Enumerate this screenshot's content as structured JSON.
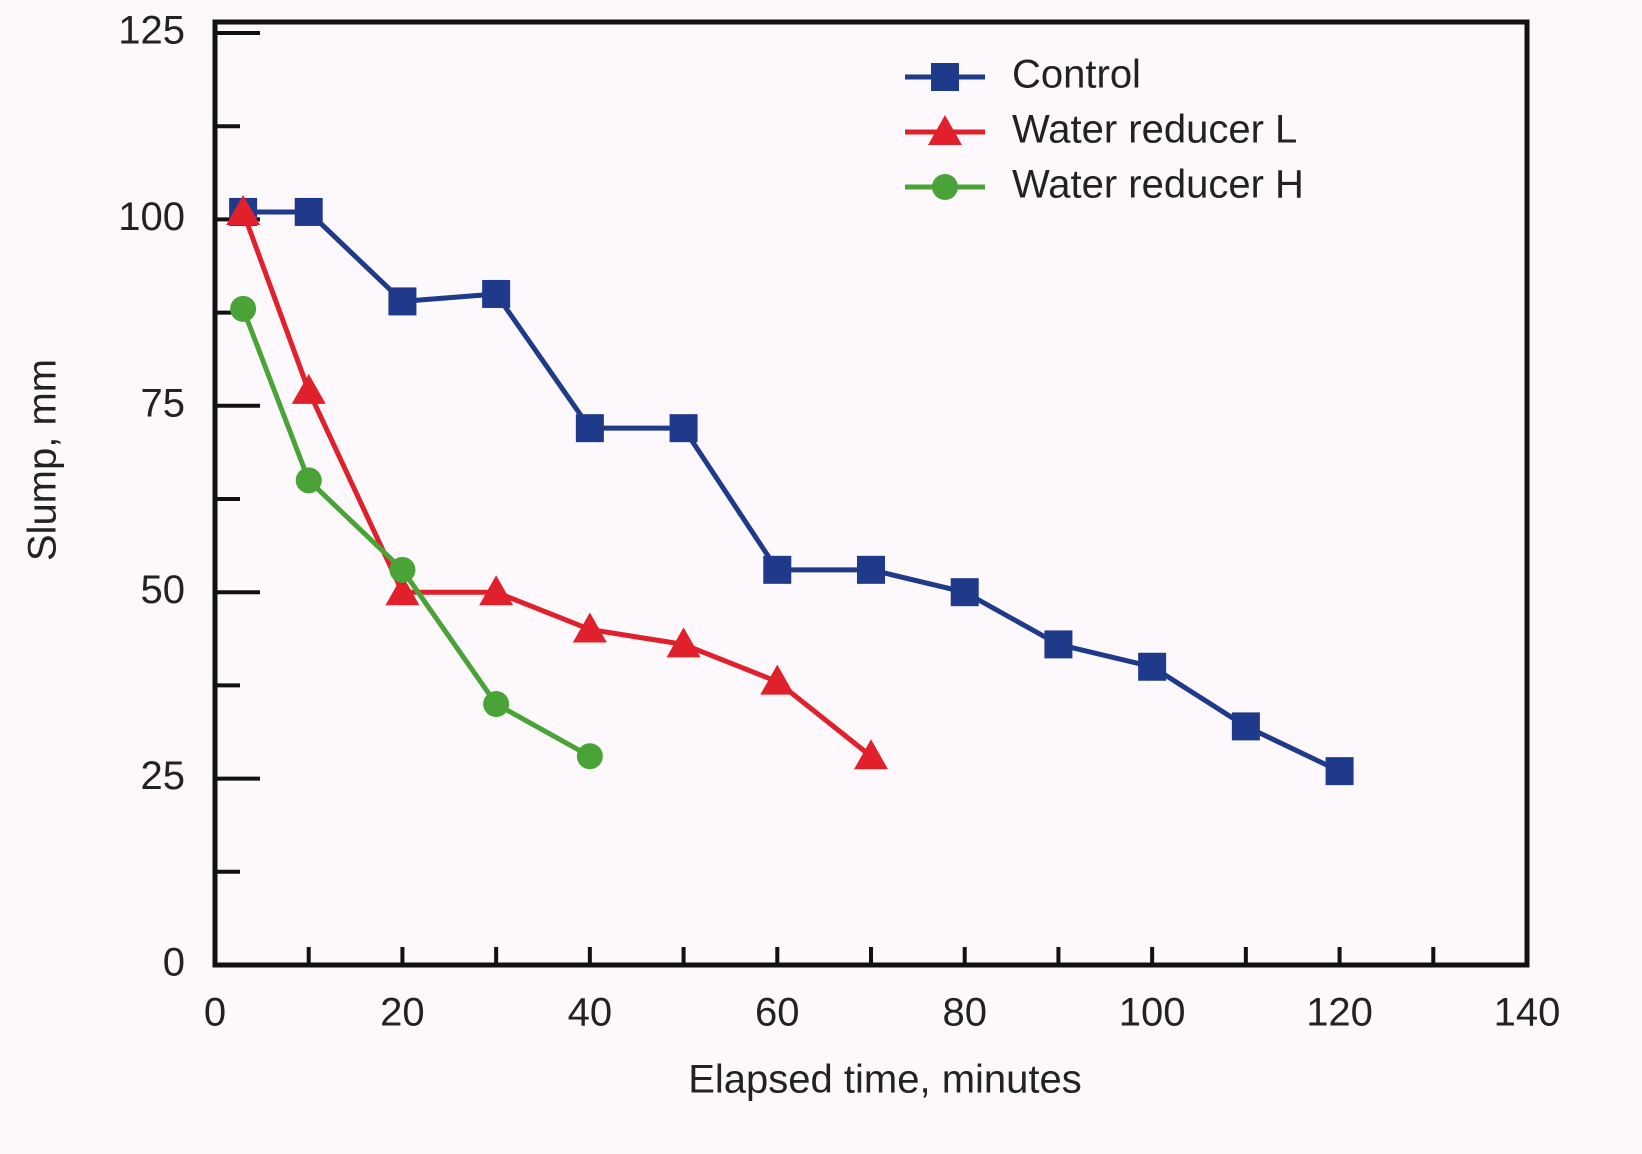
{
  "chart_data": {
    "type": "line",
    "xlabel": "Elapsed time, minutes",
    "ylabel": "Slump, mm",
    "xlim": [
      0,
      140
    ],
    "xticks": [
      0,
      20,
      40,
      60,
      80,
      100,
      120,
      140
    ],
    "xminorticks": [
      10,
      30,
      50,
      70,
      90,
      110,
      130
    ],
    "ylim": [
      0,
      125
    ],
    "yticks": [
      0,
      25,
      50,
      75,
      100,
      125
    ],
    "yminorticks": [
      12.5,
      37.5,
      62.5,
      87.5,
      112.5
    ],
    "legend": "upper right",
    "series": [
      {
        "name": "Control",
        "color": "#1f3a8a",
        "marker": "square",
        "x": [
          3,
          10,
          20,
          30,
          40,
          50,
          60,
          70,
          80,
          90,
          100,
          110,
          120
        ],
        "values": [
          101,
          101,
          89,
          90,
          72,
          72,
          53,
          53,
          50,
          43,
          40,
          32,
          26
        ]
      },
      {
        "name": "Water reducer L",
        "color": "#e0202a",
        "marker": "triangle",
        "x": [
          3,
          10,
          20,
          30,
          40,
          50,
          60,
          70
        ],
        "values": [
          101,
          77,
          50,
          50,
          45,
          43,
          38,
          28
        ]
      },
      {
        "name": "Water reducer H",
        "color": "#4aa336",
        "marker": "circle",
        "x": [
          3,
          10,
          20,
          30,
          40
        ],
        "values": [
          88,
          65,
          53,
          35,
          28
        ]
      }
    ]
  }
}
